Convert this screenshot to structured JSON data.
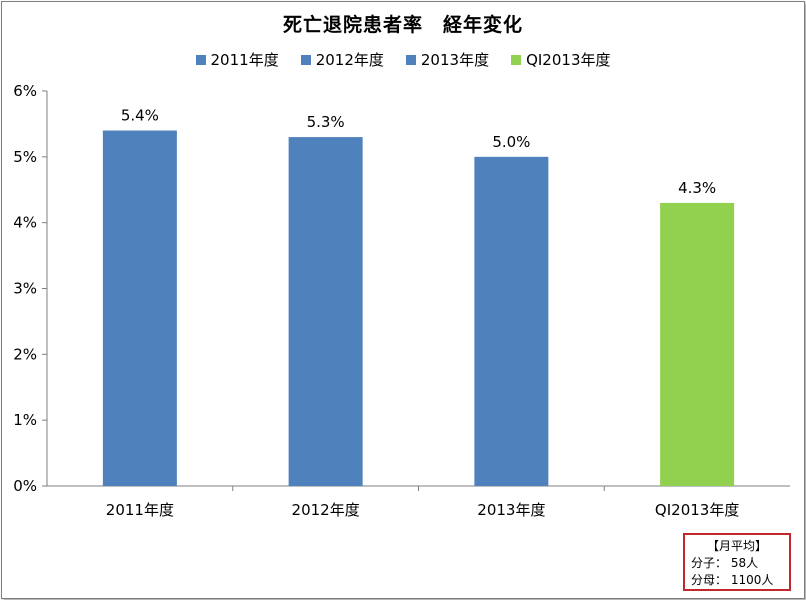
{
  "chart_data": {
    "type": "bar",
    "title": "死亡退院患者率　経年変化",
    "categories": [
      "2011年度",
      "2012年度",
      "2013年度",
      "QI2013年度"
    ],
    "values": [
      5.4,
      5.3,
      5.0,
      4.3
    ],
    "value_labels": [
      "5.4%",
      "5.3%",
      "5.0%",
      "4.3%"
    ],
    "bar_colors": [
      "#4f81bd",
      "#4f81bd",
      "#4f81bd",
      "#92d050"
    ],
    "legend": [
      {
        "label": "2011年度",
        "color": "#4f81bd"
      },
      {
        "label": "2012年度",
        "color": "#4f81bd"
      },
      {
        "label": "2013年度",
        "color": "#4f81bd"
      },
      {
        "label": "QI2013年度",
        "color": "#92d050"
      }
    ],
    "legend_position": "top",
    "ylim": [
      0,
      6
    ],
    "yticks": [
      0,
      1,
      2,
      3,
      4,
      5,
      6
    ],
    "ytick_labels": [
      "0%",
      "1%",
      "2%",
      "3%",
      "4%",
      "5%",
      "6%"
    ],
    "grid": false,
    "xlabel": "",
    "ylabel": ""
  },
  "note": {
    "heading": "【月平均】",
    "numerator": "分子：  58人",
    "denominator": "分母：  1100人"
  }
}
